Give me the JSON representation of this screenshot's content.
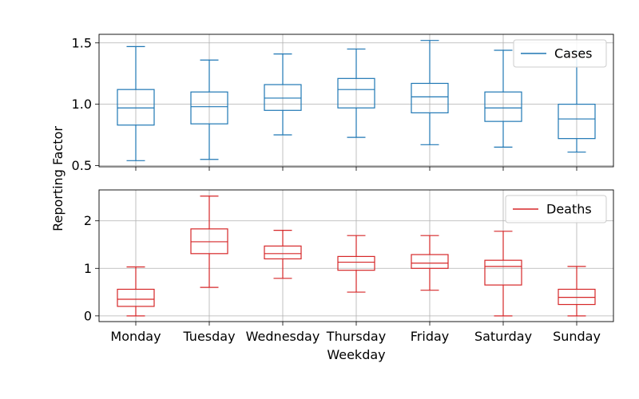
{
  "chart_data": {
    "type": "box",
    "xlabel": "Weekday",
    "ylabel": "Reporting Factor",
    "categories": [
      "Monday",
      "Tuesday",
      "Wednesday",
      "Thursday",
      "Friday",
      "Saturday",
      "Sunday"
    ],
    "grid": true,
    "panels": [
      {
        "series_name": "Cases",
        "color": "#1f77b4",
        "ylim": [
          0.49,
          1.57
        ],
        "yticks": [
          0.5,
          1.0,
          1.5
        ],
        "ytick_labels": [
          "0.5",
          "1.0",
          "1.5"
        ],
        "legend_position": "top-right",
        "boxes": [
          {
            "whisker_low": 0.54,
            "q1": 0.83,
            "median": 0.97,
            "q3": 1.12,
            "whisker_high": 1.47
          },
          {
            "whisker_low": 0.55,
            "q1": 0.84,
            "median": 0.98,
            "q3": 1.1,
            "whisker_high": 1.36
          },
          {
            "whisker_low": 0.75,
            "q1": 0.95,
            "median": 1.05,
            "q3": 1.16,
            "whisker_high": 1.41
          },
          {
            "whisker_low": 0.73,
            "q1": 0.97,
            "median": 1.12,
            "q3": 1.21,
            "whisker_high": 1.45
          },
          {
            "whisker_low": 0.67,
            "q1": 0.93,
            "median": 1.06,
            "q3": 1.17,
            "whisker_high": 1.52
          },
          {
            "whisker_low": 0.65,
            "q1": 0.86,
            "median": 0.97,
            "q3": 1.1,
            "whisker_high": 1.44
          },
          {
            "whisker_low": 0.61,
            "q1": 0.72,
            "median": 0.88,
            "q3": 1.0,
            "whisker_high": 1.43
          }
        ]
      },
      {
        "series_name": "Deaths",
        "color": "#d62728",
        "ylim": [
          -0.12,
          2.65
        ],
        "yticks": [
          0,
          1,
          2
        ],
        "ytick_labels": [
          "0",
          "1",
          "2"
        ],
        "legend_position": "top-right",
        "boxes": [
          {
            "whisker_low": 0.0,
            "q1": 0.2,
            "median": 0.35,
            "q3": 0.56,
            "whisker_high": 1.03
          },
          {
            "whisker_low": 0.6,
            "q1": 1.31,
            "median": 1.56,
            "q3": 1.83,
            "whisker_high": 2.52
          },
          {
            "whisker_low": 0.79,
            "q1": 1.2,
            "median": 1.31,
            "q3": 1.47,
            "whisker_high": 1.8
          },
          {
            "whisker_low": 0.5,
            "q1": 0.96,
            "median": 1.13,
            "q3": 1.25,
            "whisker_high": 1.69
          },
          {
            "whisker_low": 0.54,
            "q1": 1.0,
            "median": 1.11,
            "q3": 1.29,
            "whisker_high": 1.69
          },
          {
            "whisker_low": 0.0,
            "q1": 0.65,
            "median": 1.04,
            "q3": 1.17,
            "whisker_high": 1.78
          },
          {
            "whisker_low": 0.0,
            "q1": 0.24,
            "median": 0.39,
            "q3": 0.56,
            "whisker_high": 1.04
          }
        ]
      }
    ]
  }
}
